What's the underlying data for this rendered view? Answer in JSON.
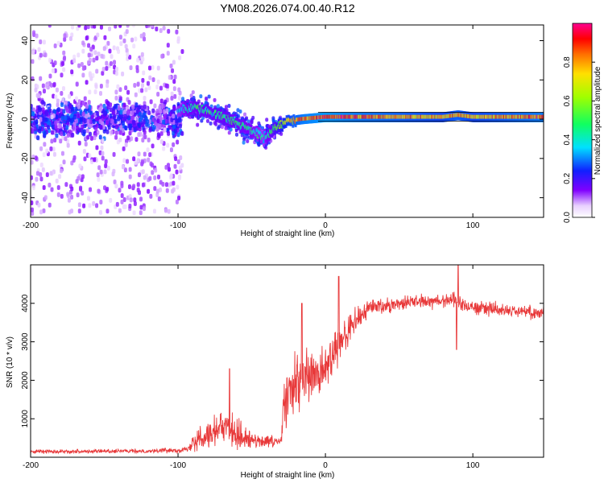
{
  "title": "YM08.2026.074.00.40.R12",
  "chart_data": [
    {
      "type": "heatmap",
      "name": "spectrogram",
      "xlabel": "Height of straight line (km)",
      "ylabel": "Frequency (Hz)",
      "xlim": [
        -200,
        148
      ],
      "ylim": [
        -50,
        48
      ],
      "xticks": [
        -200,
        -100,
        0,
        100
      ],
      "xtick_labels": [
        "-200",
        "-100",
        "0",
        "100"
      ],
      "yticks": [
        -40,
        -20,
        0,
        20,
        40
      ],
      "ytick_labels": [
        "-40",
        "-20",
        "0",
        "20",
        "40"
      ],
      "colorbar": {
        "label": "Normalized spectral amplitude",
        "range": [
          0,
          1
        ],
        "ticks": [
          0,
          0.2,
          0.4,
          0.6,
          0.8
        ],
        "tick_labels": [
          "0.0",
          "0.2",
          "0.4",
          "0.6",
          "0.8"
        ],
        "colormap": "rainbow (white-violet-blue-cyan-green-yellow-red-magenta)"
      },
      "ridge": [
        {
          "x": -100,
          "f": 4,
          "amp": 0.35
        },
        {
          "x": -90,
          "f": 6,
          "amp": 0.45
        },
        {
          "x": -80,
          "f": 4,
          "amp": 0.45
        },
        {
          "x": -70,
          "f": 1,
          "amp": 0.45
        },
        {
          "x": -60,
          "f": -2,
          "amp": 0.45
        },
        {
          "x": -50,
          "f": -6,
          "amp": 0.4
        },
        {
          "x": -42,
          "f": -10,
          "amp": 0.35
        },
        {
          "x": -35,
          "f": -5,
          "amp": 0.5
        },
        {
          "x": -25,
          "f": -1,
          "amp": 0.75
        },
        {
          "x": -15,
          "f": 0,
          "amp": 0.85
        },
        {
          "x": 0,
          "f": 1,
          "amp": 0.9
        },
        {
          "x": 20,
          "f": 1,
          "amp": 0.85
        },
        {
          "x": 50,
          "f": 1,
          "amp": 0.8
        },
        {
          "x": 80,
          "f": 1,
          "amp": 0.75
        },
        {
          "x": 90,
          "f": 2,
          "amp": 0.8
        },
        {
          "x": 100,
          "f": 1,
          "amp": 0.75
        },
        {
          "x": 148,
          "f": 1,
          "amp": 0.85
        }
      ],
      "noise_region": {
        "x_from": -200,
        "x_to": -97,
        "f_spread": 48
      }
    },
    {
      "type": "line",
      "name": "snr",
      "xlabel": "Height of straight line (km)",
      "ylabel": "SNR (10 * v/v)",
      "xlim": [
        -200,
        148
      ],
      "ylim": [
        0,
        5000
      ],
      "xticks": [
        -200,
        -100,
        0,
        100
      ],
      "xtick_labels": [
        "-200",
        "-100",
        "0",
        "100"
      ],
      "yticks": [
        1000,
        2000,
        3000,
        4000
      ],
      "ytick_labels": [
        "1000",
        "2000",
        "3000",
        "4000"
      ],
      "color": "#e8393a",
      "envelope": [
        {
          "x": -200,
          "y": 150,
          "jitter": 70
        },
        {
          "x": -120,
          "y": 160,
          "jitter": 80
        },
        {
          "x": -93,
          "y": 200,
          "jitter": 120
        },
        {
          "x": -88,
          "y": 500,
          "jitter": 450
        },
        {
          "x": -75,
          "y": 700,
          "jitter": 700
        },
        {
          "x": -65,
          "y": 800,
          "jitter": 800
        },
        {
          "x": -55,
          "y": 500,
          "jitter": 500
        },
        {
          "x": -45,
          "y": 400,
          "jitter": 250
        },
        {
          "x": -30,
          "y": 400,
          "jitter": 250
        },
        {
          "x": -28,
          "y": 1500,
          "jitter": 1100
        },
        {
          "x": -15,
          "y": 2000,
          "jitter": 1200
        },
        {
          "x": -5,
          "y": 2100,
          "jitter": 1000
        },
        {
          "x": 5,
          "y": 2600,
          "jitter": 900
        },
        {
          "x": 15,
          "y": 3300,
          "jitter": 600
        },
        {
          "x": 30,
          "y": 3900,
          "jitter": 350
        },
        {
          "x": 60,
          "y": 4050,
          "jitter": 300
        },
        {
          "x": 85,
          "y": 4100,
          "jitter": 350
        },
        {
          "x": 100,
          "y": 3900,
          "jitter": 300
        },
        {
          "x": 148,
          "y": 3750,
          "jitter": 250
        }
      ],
      "spikes": [
        {
          "x": -65,
          "y": 2300
        },
        {
          "x": -16,
          "y": 4000
        },
        {
          "x": 9,
          "y": 4700
        },
        {
          "x": 89,
          "y": 2800
        },
        {
          "x": 90,
          "y": 5000
        }
      ]
    }
  ]
}
